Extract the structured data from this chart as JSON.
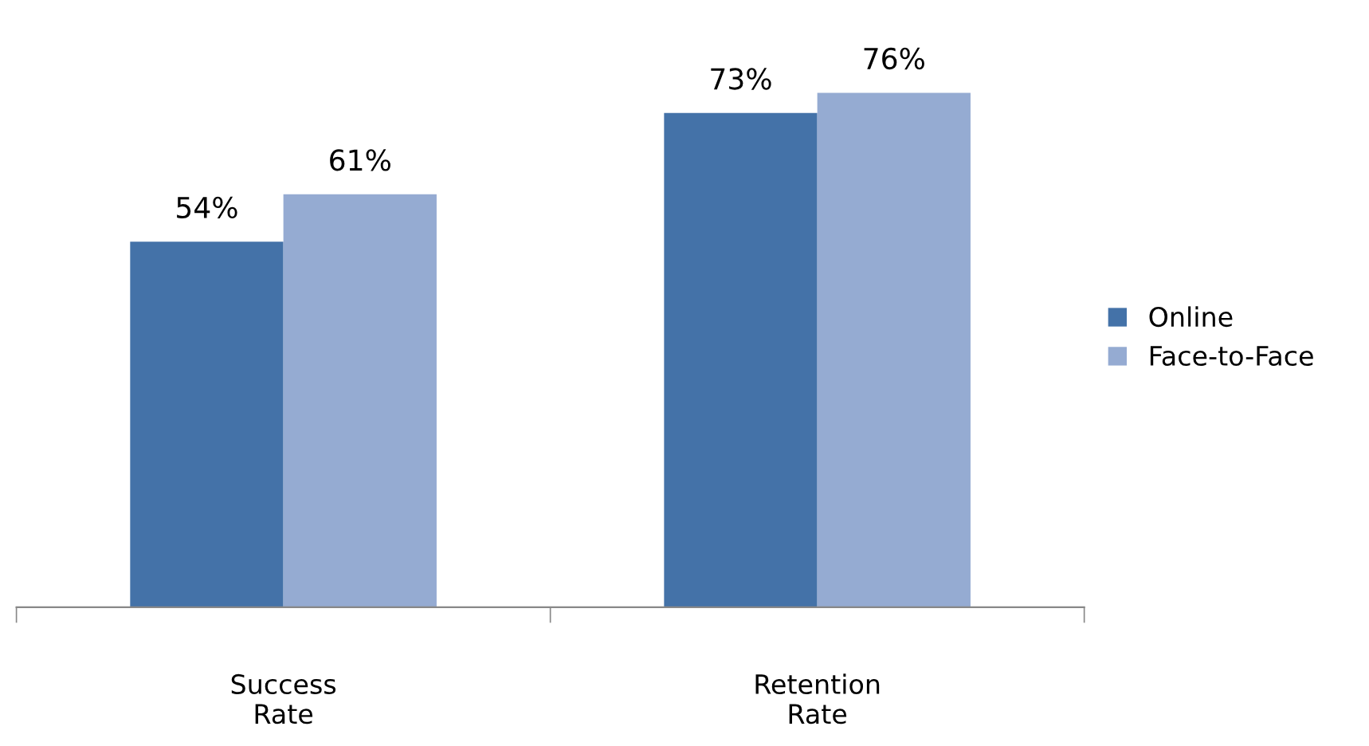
{
  "chart_data": {
    "type": "bar",
    "categories": [
      "Success\nRate",
      "Retention\nRate"
    ],
    "series": [
      {
        "name": "Online",
        "color": "#4472a8",
        "values": [
          54,
          73
        ],
        "value_labels": [
          "54%",
          "73%"
        ]
      },
      {
        "name": "Face-to-Face",
        "color": "#95abd2",
        "values": [
          61,
          76
        ],
        "value_labels": [
          "61%",
          "76%"
        ]
      }
    ],
    "legend": "right",
    "grid": false
  }
}
